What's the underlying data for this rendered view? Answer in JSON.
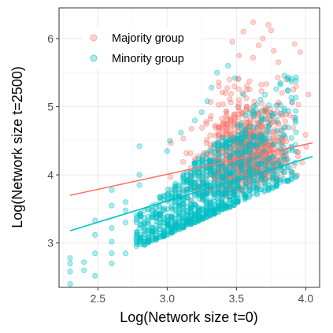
{
  "chart_data": {
    "type": "scatter",
    "xlabel": "Log(Network size t=0)",
    "ylabel": "Log(Network size t=2500)",
    "xlim": [
      2.22,
      4.1
    ],
    "ylim": [
      2.35,
      6.45
    ],
    "x_ticks": [
      "2.5",
      "3.0",
      "3.5",
      "4.0"
    ],
    "y_ticks": [
      "3",
      "4",
      "5",
      "6"
    ],
    "grid": true,
    "legend_position": "top-left",
    "series": [
      {
        "name": "Majority group",
        "color": "#F8766D",
        "fit_line": [
          [
            2.3,
            3.7
          ],
          [
            4.05,
            4.47
          ]
        ],
        "x_range": [
          2.75,
          4.05
        ],
        "points": [
          [
            3.62,
            6.24
          ],
          [
            3.73,
            6.2
          ],
          [
            3.75,
            6.12
          ],
          [
            3.55,
            6.1
          ],
          [
            3.69,
            6.0
          ],
          [
            3.47,
            5.95
          ],
          [
            3.66,
            5.9
          ],
          [
            3.92,
            5.92
          ],
          [
            3.77,
            5.82
          ],
          [
            3.52,
            5.75
          ],
          [
            3.96,
            5.8
          ],
          [
            3.62,
            5.72
          ],
          [
            3.86,
            5.4
          ],
          [
            3.93,
            5.3
          ],
          [
            4.02,
            5.18
          ],
          [
            3.9,
            5.06
          ],
          [
            3.45,
            5.4
          ],
          [
            3.42,
            5.2
          ]
        ]
      },
      {
        "name": "Minority group",
        "color": "#00BFC4",
        "fit_line": [
          [
            2.3,
            3.18
          ],
          [
            4.05,
            4.27
          ]
        ],
        "x_range": [
          2.3,
          3.95
        ],
        "points": [
          [
            2.3,
            2.4
          ],
          [
            2.3,
            2.58
          ],
          [
            2.3,
            2.7
          ],
          [
            2.3,
            2.78
          ],
          [
            2.4,
            2.6
          ],
          [
            2.4,
            2.72
          ],
          [
            2.48,
            2.52
          ],
          [
            2.48,
            2.85
          ],
          [
            2.48,
            3.12
          ],
          [
            2.48,
            3.33
          ],
          [
            2.6,
            2.7
          ],
          [
            2.6,
            2.85
          ],
          [
            2.6,
            3.02
          ],
          [
            2.6,
            3.22
          ],
          [
            2.6,
            3.55
          ],
          [
            2.6,
            3.78
          ],
          [
            2.7,
            2.85
          ],
          [
            2.7,
            3.3
          ],
          [
            2.7,
            3.48
          ],
          [
            2.7,
            3.6
          ],
          [
            2.8,
            3.02
          ],
          [
            2.8,
            3.22
          ],
          [
            2.8,
            3.42
          ],
          [
            2.8,
            3.85
          ],
          [
            2.8,
            4.0
          ],
          [
            2.8,
            4.42
          ],
          [
            3.0,
            4.35
          ],
          [
            3.02,
            4.5
          ],
          [
            3.1,
            4.62
          ],
          [
            3.2,
            4.8
          ],
          [
            3.25,
            4.92
          ],
          [
            3.29,
            5.08
          ],
          [
            3.32,
            5.28
          ],
          [
            3.36,
            5.5
          ],
          [
            3.44,
            5.6
          ],
          [
            3.49,
            5.42
          ],
          [
            3.55,
            5.18
          ],
          [
            3.62,
            5.0
          ],
          [
            3.68,
            4.85
          ],
          [
            3.72,
            4.65
          ]
        ]
      }
    ]
  }
}
